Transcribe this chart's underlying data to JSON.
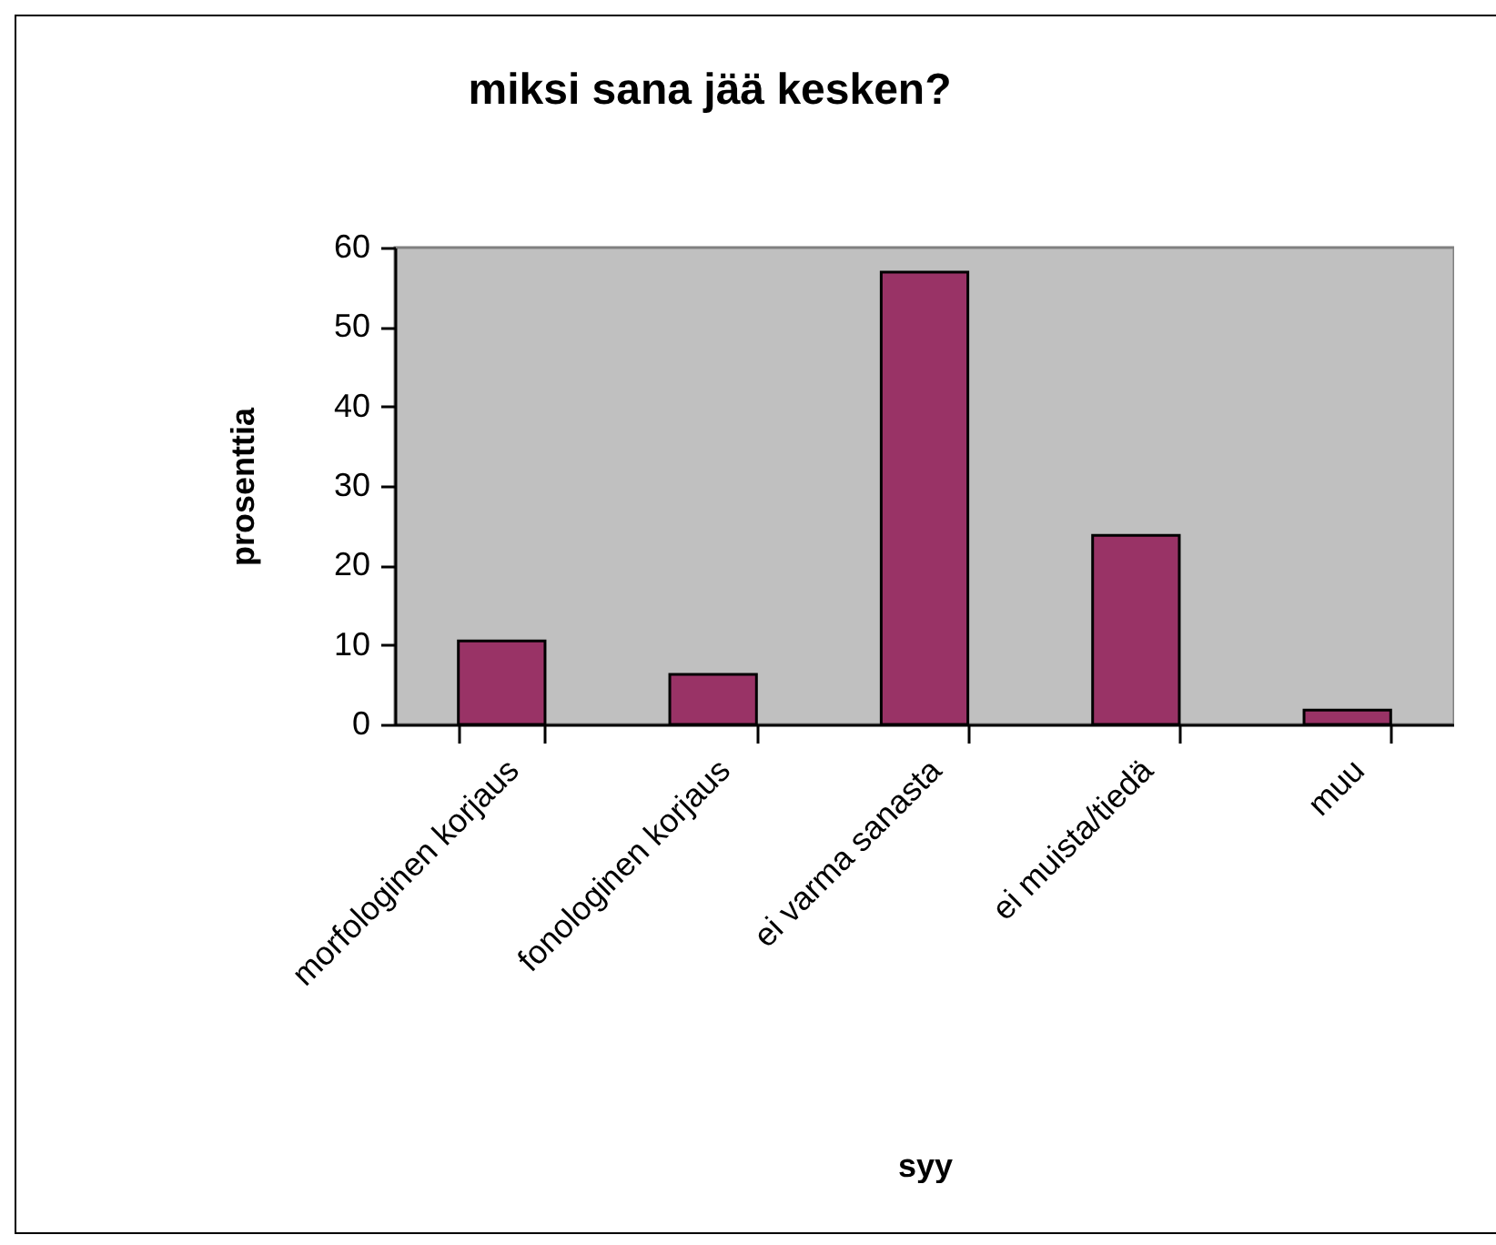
{
  "chart_data": {
    "type": "bar",
    "title": "miksi sana jää kesken?",
    "xlabel": "syy",
    "ylabel": "prosenttia",
    "categories": [
      "morfologinen korjaus",
      "fonologinen korjaus",
      "ei varma sanasta",
      "ei muista/tiedä",
      "muu"
    ],
    "values": [
      10.5,
      6.3,
      56.9,
      23.8,
      1.8
    ],
    "color": "#993366",
    "ylim": [
      0,
      60
    ],
    "yticks": [
      0,
      10,
      20,
      30,
      40,
      50,
      60
    ],
    "grid": false
  }
}
